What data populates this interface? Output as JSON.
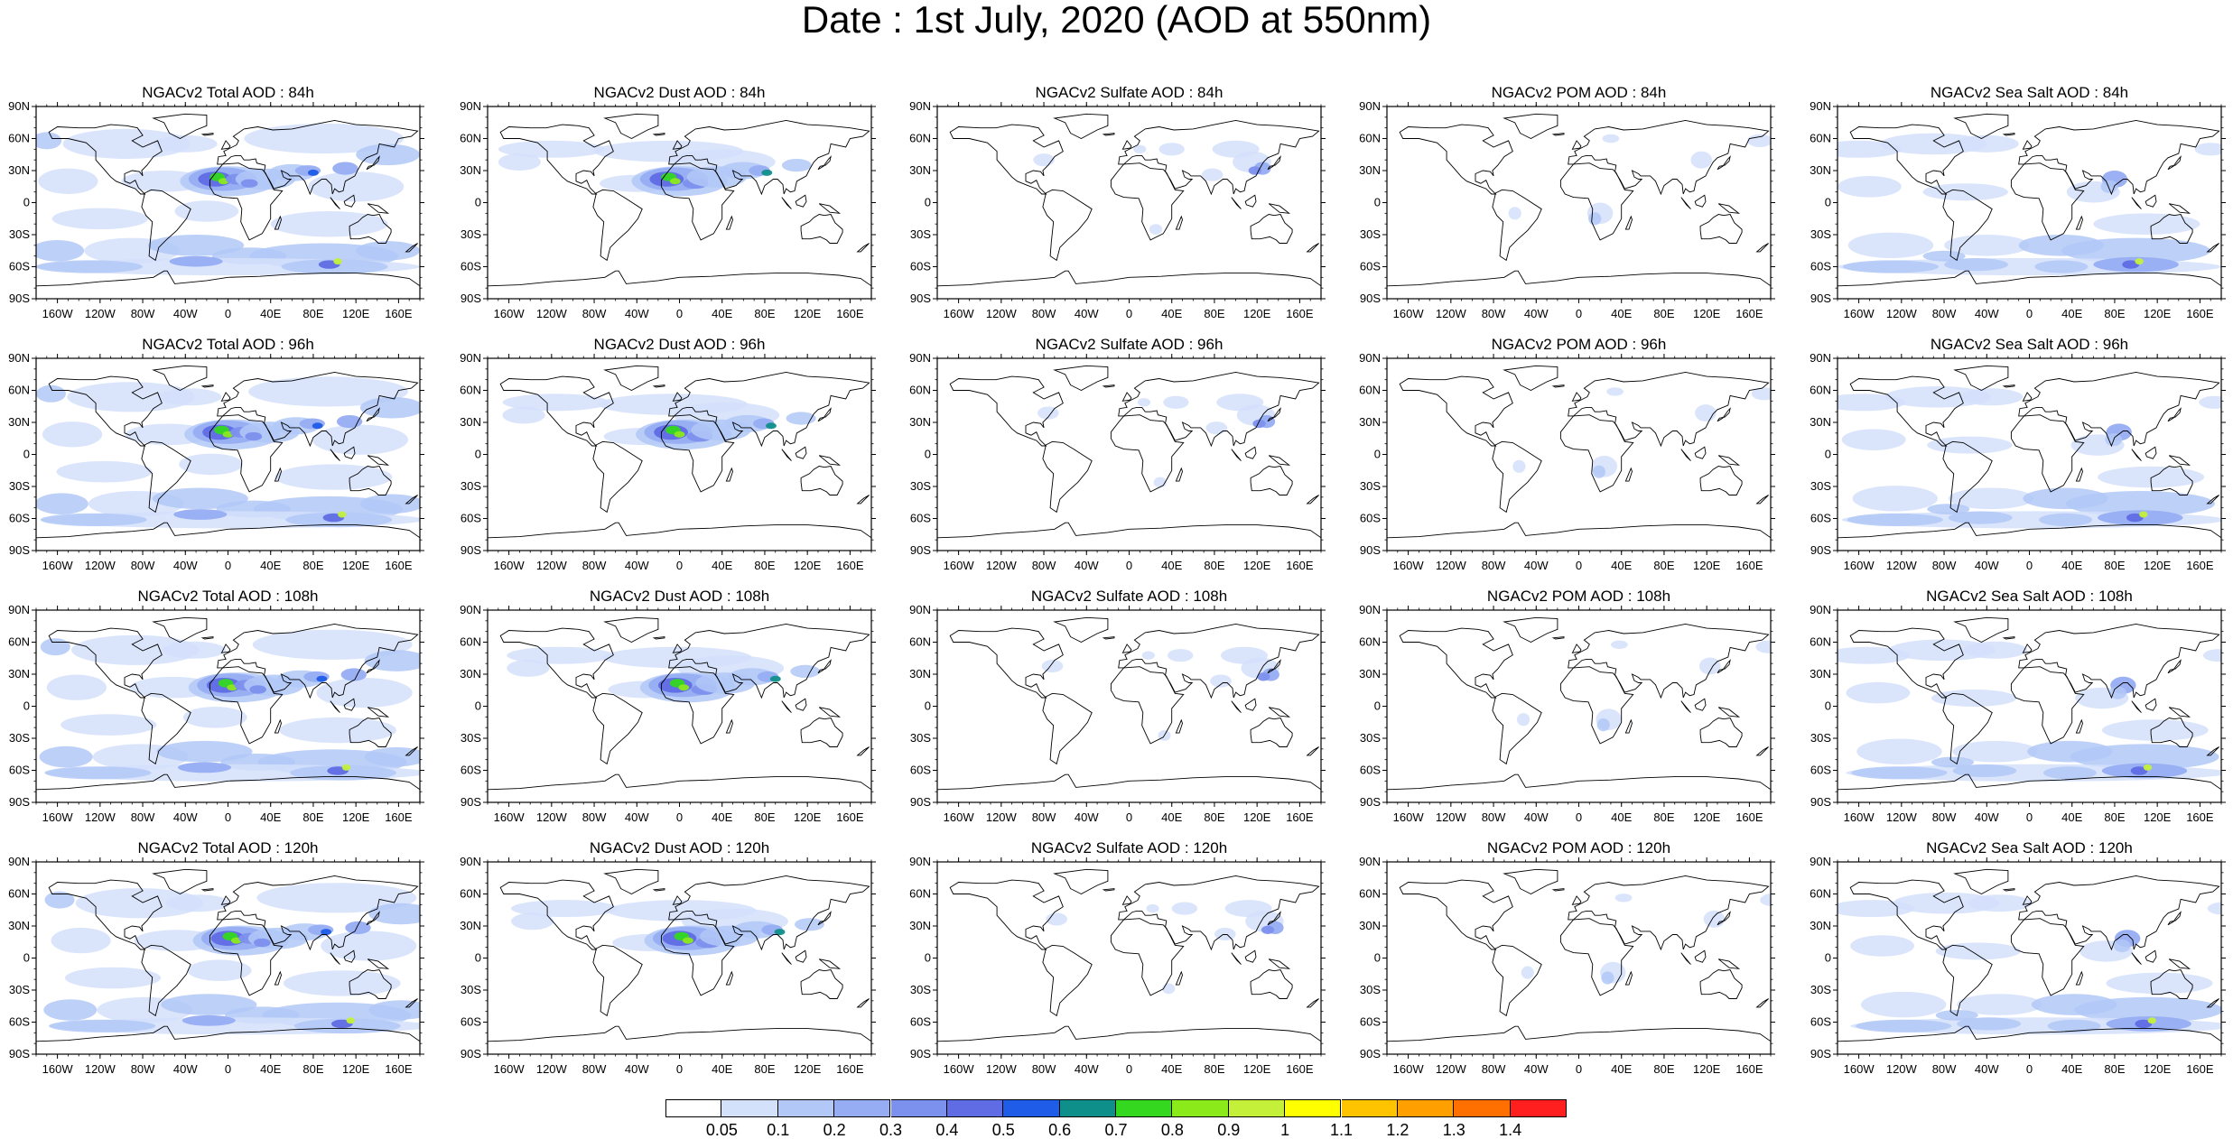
{
  "title": "Date : 1st July, 2020 (AOD at 550nm)",
  "lat_ticks": [
    "90N",
    "60N",
    "30N",
    "0",
    "30S",
    "60S",
    "90S"
  ],
  "lon_ticks": [
    "160W",
    "120W",
    "80W",
    "40W",
    "0",
    "40E",
    "80E",
    "120E",
    "160E"
  ],
  "panels": [
    {
      "title": "NGACv2 Total AOD : 84h",
      "field": "total",
      "hour": 84
    },
    {
      "title": "NGACv2 Dust AOD : 84h",
      "field": "dust",
      "hour": 84
    },
    {
      "title": "NGACv2 Sulfate AOD : 84h",
      "field": "sulfate",
      "hour": 84
    },
    {
      "title": "NGACv2 POM AOD : 84h",
      "field": "pom",
      "hour": 84
    },
    {
      "title": "NGACv2 Sea Salt AOD : 84h",
      "field": "seasalt",
      "hour": 84
    },
    {
      "title": "NGACv2 Total AOD : 96h",
      "field": "total",
      "hour": 96
    },
    {
      "title": "NGACv2 Dust AOD : 96h",
      "field": "dust",
      "hour": 96
    },
    {
      "title": "NGACv2 Sulfate AOD : 96h",
      "field": "sulfate",
      "hour": 96
    },
    {
      "title": "NGACv2 POM AOD : 96h",
      "field": "pom",
      "hour": 96
    },
    {
      "title": "NGACv2 Sea Salt AOD : 96h",
      "field": "seasalt",
      "hour": 96
    },
    {
      "title": "NGACv2 Total AOD : 108h",
      "field": "total",
      "hour": 108
    },
    {
      "title": "NGACv2 Dust AOD : 108h",
      "field": "dust",
      "hour": 108
    },
    {
      "title": "NGACv2 Sulfate AOD : 108h",
      "field": "sulfate",
      "hour": 108
    },
    {
      "title": "NGACv2 POM AOD : 108h",
      "field": "pom",
      "hour": 108
    },
    {
      "title": "NGACv2 Sea Salt AOD : 108h",
      "field": "seasalt",
      "hour": 108
    },
    {
      "title": "NGACv2 Total AOD : 120h",
      "field": "total",
      "hour": 120
    },
    {
      "title": "NGACv2 Dust AOD : 120h",
      "field": "dust",
      "hour": 120
    },
    {
      "title": "NGACv2 Sulfate AOD : 120h",
      "field": "sulfate",
      "hour": 120
    },
    {
      "title": "NGACv2 POM AOD : 120h",
      "field": "pom",
      "hour": 120
    },
    {
      "title": "NGACv2 Sea Salt  AOD : 120h",
      "field": "seasalt",
      "hour": 120
    }
  ],
  "colorbar": {
    "labels": [
      "0.05",
      "0.1",
      "0.2",
      "0.3",
      "0.4",
      "0.5",
      "0.6",
      "0.7",
      "0.8",
      "0.9",
      "1",
      "1.1",
      "1.2",
      "1.3",
      "1.4"
    ],
    "colors": [
      "#ffffff",
      "#d3e1fb",
      "#b2c8f7",
      "#97adf3",
      "#7c90ed",
      "#5f6ce4",
      "#1f5ce8",
      "#0f8f8a",
      "#33d81f",
      "#8bea1a",
      "#c4f03a",
      "#ffff00",
      "#ffc400",
      "#ff9f00",
      "#ff7000",
      "#ff1f1f"
    ]
  }
}
